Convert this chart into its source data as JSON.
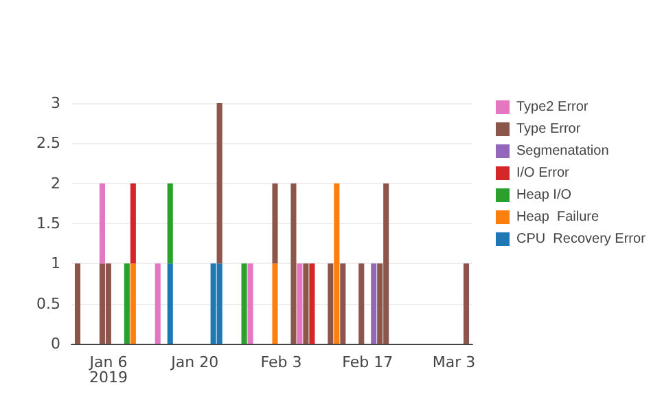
{
  "chart_data": {
    "type": "bar",
    "stacked": true,
    "x": [
      "2019-01-01",
      "2019-01-05",
      "2019-01-06",
      "2019-01-09",
      "2019-01-10",
      "2019-01-14",
      "2019-01-16",
      "2019-01-23",
      "2019-01-24",
      "2019-01-28",
      "2019-01-29",
      "2019-02-02",
      "2019-02-05",
      "2019-02-06",
      "2019-02-07",
      "2019-02-08",
      "2019-02-11",
      "2019-02-12",
      "2019-02-13",
      "2019-02-16",
      "2019-02-18",
      "2019-02-19",
      "2019-02-20",
      "2019-03-05"
    ],
    "xlim": [
      "2018-12-31",
      "2019-03-06"
    ],
    "xticks": [
      {
        "value": "2019-01-06",
        "label": "Jan 6\n2019"
      },
      {
        "value": "2019-01-20",
        "label": "Jan 20"
      },
      {
        "value": "2019-02-03",
        "label": "Feb 3"
      },
      {
        "value": "2019-02-17",
        "label": "Feb 17"
      },
      {
        "value": "2019-03-03",
        "label": "Mar 3"
      }
    ],
    "ylim": [
      0,
      3
    ],
    "yticks": [
      0,
      0.5,
      1,
      1.5,
      2,
      2.5,
      3
    ],
    "grid": "y",
    "legend": "top right",
    "series": [
      {
        "name": "CPU  Recovery Error",
        "color": "#1f77b4",
        "values": [
          null,
          null,
          null,
          null,
          null,
          null,
          1,
          1,
          1,
          null,
          null,
          null,
          null,
          null,
          null,
          null,
          null,
          null,
          null,
          null,
          null,
          null,
          null,
          null
        ]
      },
      {
        "name": "Heap  Failure",
        "color": "#ff7f0e",
        "values": [
          null,
          null,
          null,
          null,
          1,
          null,
          null,
          null,
          null,
          null,
          null,
          1,
          null,
          null,
          null,
          null,
          null,
          2,
          null,
          null,
          null,
          null,
          null,
          null
        ]
      },
      {
        "name": "Heap I/O",
        "color": "#2ca02c",
        "values": [
          null,
          null,
          null,
          1,
          null,
          null,
          1,
          null,
          null,
          1,
          null,
          null,
          null,
          null,
          null,
          null,
          null,
          null,
          null,
          null,
          null,
          null,
          null,
          null
        ]
      },
      {
        "name": "I/O Error",
        "color": "#d62728",
        "values": [
          null,
          null,
          null,
          null,
          1,
          null,
          null,
          null,
          null,
          null,
          null,
          null,
          null,
          null,
          null,
          1,
          null,
          null,
          null,
          null,
          null,
          null,
          null,
          null
        ]
      },
      {
        "name": "Segmenatation",
        "color": "#9467bd",
        "values": [
          null,
          null,
          null,
          null,
          null,
          null,
          null,
          null,
          null,
          null,
          null,
          null,
          null,
          null,
          null,
          null,
          null,
          null,
          null,
          null,
          1,
          null,
          null,
          null
        ]
      },
      {
        "name": "Type Error",
        "color": "#8c564b",
        "values": [
          1,
          1,
          1,
          null,
          null,
          null,
          null,
          null,
          2,
          null,
          null,
          1,
          2,
          null,
          1,
          null,
          1,
          null,
          1,
          1,
          null,
          1,
          2,
          1
        ]
      },
      {
        "name": "Type2 Error",
        "color": "#e377c2",
        "values": [
          null,
          1,
          null,
          null,
          null,
          1,
          null,
          null,
          null,
          null,
          1,
          null,
          null,
          1,
          null,
          null,
          null,
          null,
          null,
          null,
          null,
          null,
          null,
          null
        ]
      }
    ]
  }
}
